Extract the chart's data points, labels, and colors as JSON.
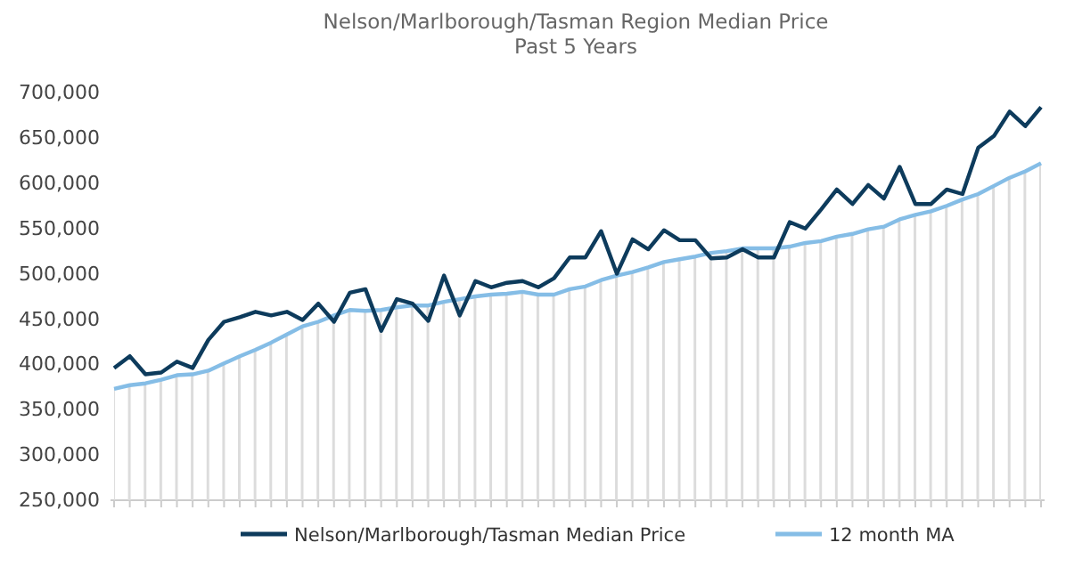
{
  "chart_data": {
    "type": "line",
    "title": "Nelson/Marlborough/Tasman Region Median Price",
    "subtitle": "Past 5 Years",
    "categories": [
      null,
      null,
      null,
      null,
      null,
      null,
      null,
      null,
      null,
      null,
      null,
      null,
      null,
      null,
      null,
      null,
      null,
      null,
      null,
      null,
      null,
      null,
      null,
      null,
      null,
      null,
      null,
      null,
      null,
      null,
      null,
      null,
      null,
      null,
      null,
      null,
      null,
      null,
      null,
      null,
      null,
      null,
      null,
      null,
      null,
      null,
      null,
      null,
      null,
      null,
      null,
      null,
      null,
      null,
      null,
      null,
      null,
      null,
      null,
      null
    ],
    "series": [
      {
        "name": "Nelson/Marlborough/Tasman Median Price",
        "color": "#0d3b5c",
        "values": [
          396000,
          409000,
          389000,
          391000,
          403000,
          396000,
          427000,
          447000,
          452000,
          458000,
          454000,
          458000,
          449000,
          467000,
          447000,
          479000,
          483000,
          437000,
          472000,
          467000,
          448000,
          498000,
          454000,
          492000,
          485000,
          490000,
          492000,
          485000,
          495000,
          518000,
          518000,
          547000,
          500000,
          538000,
          527000,
          548000,
          537000,
          537000,
          517000,
          518000,
          527000,
          518000,
          518000,
          557000,
          550000,
          571000,
          593000,
          577000,
          598000,
          583000,
          618000,
          577000,
          577000,
          593000,
          588000,
          639000,
          652000,
          679000,
          663000,
          684000
        ]
      },
      {
        "name": "12 month MA",
        "color": "#85bde6",
        "type": "area",
        "values": [
          373000,
          377000,
          379000,
          383000,
          388000,
          389000,
          393000,
          401000,
          409000,
          416000,
          424000,
          433000,
          442000,
          447000,
          454000,
          460000,
          459000,
          460000,
          463000,
          465000,
          465000,
          469000,
          472000,
          475000,
          477000,
          478000,
          480000,
          477000,
          477000,
          483000,
          486000,
          493000,
          498000,
          502000,
          507000,
          513000,
          516000,
          519000,
          523000,
          525000,
          528000,
          528000,
          528000,
          530000,
          534000,
          536000,
          541000,
          544000,
          549000,
          552000,
          560000,
          565000,
          569000,
          575000,
          582000,
          588000,
          597000,
          606000,
          613000,
          622000
        ]
      }
    ],
    "ylim": [
      250000,
      700000
    ],
    "yticks": [
      {
        "value": 250000,
        "label": "250,000"
      },
      {
        "value": 300000,
        "label": "300,000"
      },
      {
        "value": 350000,
        "label": "350,000"
      },
      {
        "value": 400000,
        "label": "400,000"
      },
      {
        "value": 450000,
        "label": "450,000"
      },
      {
        "value": 500000,
        "label": "500,000"
      },
      {
        "value": 550000,
        "label": "550,000"
      },
      {
        "value": 600000,
        "label": "600,000"
      },
      {
        "value": 650000,
        "label": "650,000"
      },
      {
        "value": 700000,
        "label": "700,000"
      }
    ],
    "legend": "bottom",
    "grid": false,
    "marker": "none",
    "line_style": "solid"
  }
}
